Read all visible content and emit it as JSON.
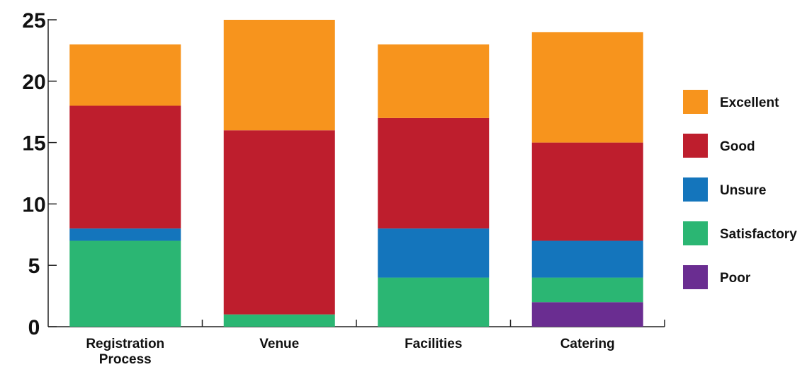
{
  "chart_data": {
    "type": "bar",
    "stacked": true,
    "categories": [
      "Registration\nProcess",
      "Venue",
      "Facilities",
      "Catering"
    ],
    "series": [
      {
        "name": "Poor",
        "color": "#6a2d91",
        "values": [
          0,
          0,
          0,
          2
        ]
      },
      {
        "name": "Satisfactory",
        "color": "#2bb673",
        "values": [
          7,
          1,
          4,
          2
        ]
      },
      {
        "name": "Unsure",
        "color": "#1475bc",
        "values": [
          1,
          0,
          4,
          3
        ]
      },
      {
        "name": "Good",
        "color": "#be1e2d",
        "values": [
          10,
          15,
          9,
          8
        ]
      },
      {
        "name": "Excellent",
        "color": "#f7941d",
        "values": [
          5,
          9,
          6,
          9
        ]
      }
    ],
    "legend_order": [
      "Excellent",
      "Good",
      "Unsure",
      "Satisfactory",
      "Poor"
    ],
    "ylim": [
      0,
      25
    ],
    "yticks": [
      0,
      5,
      10,
      15,
      20,
      25
    ],
    "title": "",
    "xlabel": "",
    "ylabel": "",
    "grid": false,
    "legend_position": "right"
  }
}
